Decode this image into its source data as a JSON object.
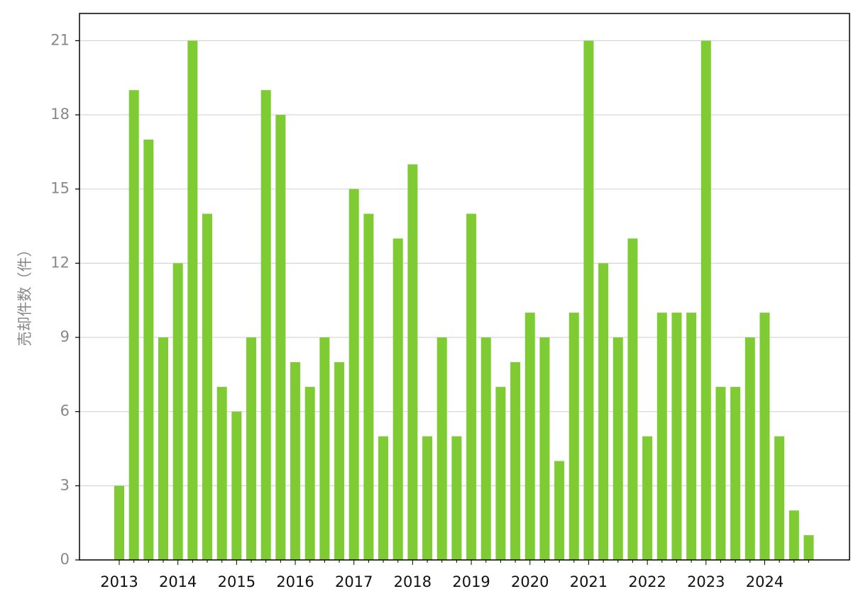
{
  "chart_data": {
    "type": "bar",
    "y_label": "売却件数（件）",
    "categories": [
      "2013",
      null,
      null,
      null,
      "2014",
      null,
      null,
      null,
      "2015",
      null,
      null,
      null,
      "2016",
      null,
      null,
      null,
      "2017",
      null,
      null,
      null,
      "2018",
      null,
      null,
      null,
      "2019",
      null,
      null,
      null,
      "2020",
      null,
      null,
      null,
      "2021",
      null,
      null,
      null,
      "2022",
      null,
      null,
      null,
      "2023",
      null,
      null,
      null,
      "2024",
      null,
      null,
      null
    ],
    "values": [
      3,
      19,
      17,
      9,
      12,
      21,
      14,
      7,
      6,
      9,
      19,
      18,
      8,
      7,
      9,
      8,
      15,
      14,
      5,
      13,
      16,
      5,
      9,
      5,
      14,
      9,
      7,
      8,
      10,
      9,
      4,
      10,
      21,
      12,
      9,
      13,
      5,
      10,
      10,
      10,
      21,
      7,
      7,
      9,
      10,
      5,
      2,
      1
    ],
    "color": "#7ecb34",
    "ylim": [
      0,
      22.1
    ],
    "yticks": [
      0,
      3,
      6,
      9,
      12,
      15,
      18,
      21
    ],
    "grid": true
  }
}
